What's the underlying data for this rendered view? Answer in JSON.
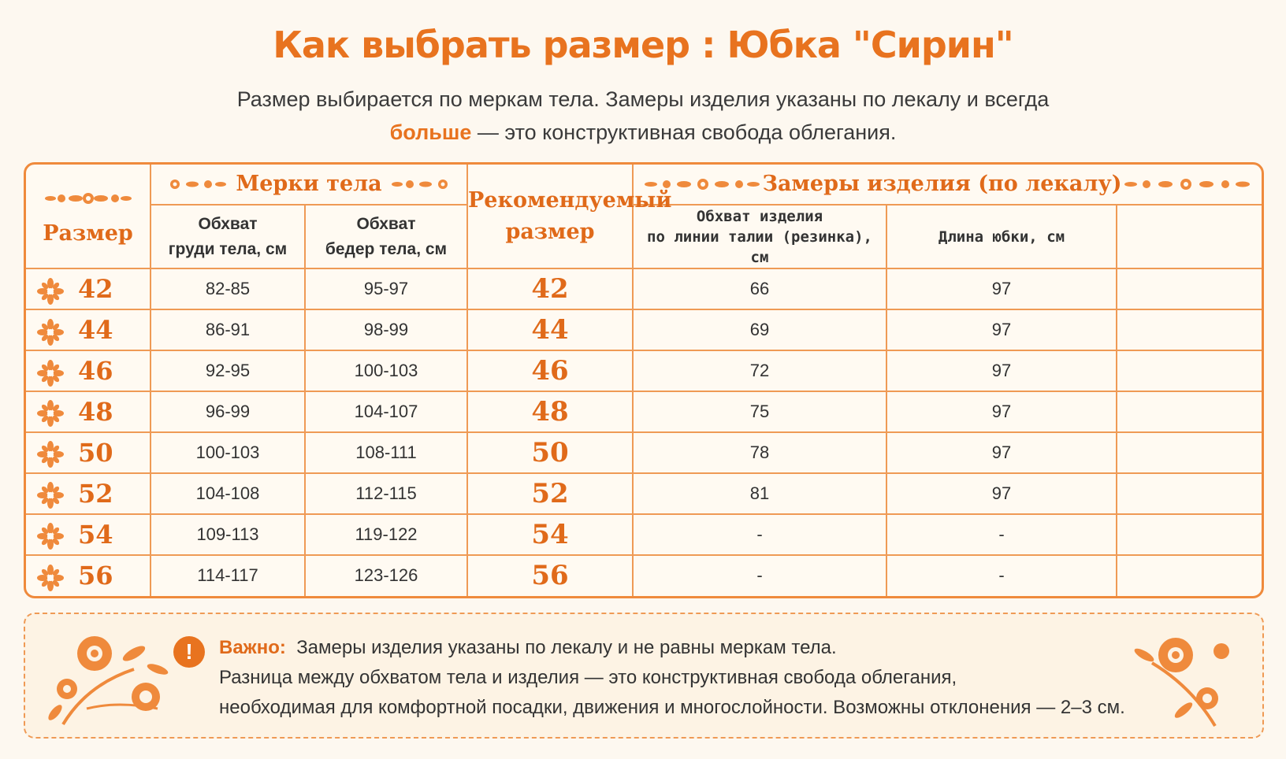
{
  "title": "Как выбрать размер :  Юбка \"Сирин\"",
  "subtitle": {
    "line1": "Размер выбирается по меркам тела. Замеры изделия указаны по лекалу и всегда",
    "bold": "больше",
    "line2_rest": " — это конструктивная свобода облегания."
  },
  "table": {
    "col_size": "Размер",
    "group_body": "Мерки тела",
    "col_chest": [
      "Обхват",
      "груди тела, см"
    ],
    "col_hips": [
      "Обхват",
      "бедер тела, см"
    ],
    "col_rec": [
      "Рекомендуемый",
      "размер"
    ],
    "group_product": "Замеры изделия (по лекалу)",
    "col_waist": [
      "Обхват изделия",
      "по линии талии (резинка), см"
    ],
    "col_length": "Длина юбки, см",
    "rows": [
      {
        "size": "42",
        "chest": "82-85",
        "hips": "95-97",
        "rec": "42",
        "waist": "66",
        "length": "97"
      },
      {
        "size": "44",
        "chest": "86-91",
        "hips": "98-99",
        "rec": "44",
        "waist": "69",
        "length": "97"
      },
      {
        "size": "46",
        "chest": "92-95",
        "hips": "100-103",
        "rec": "46",
        "waist": "72",
        "length": "97"
      },
      {
        "size": "48",
        "chest": "96-99",
        "hips": "104-107",
        "rec": "48",
        "waist": "75",
        "length": "97"
      },
      {
        "size": "50",
        "chest": "100-103",
        "hips": "108-111",
        "rec": "50",
        "waist": "78",
        "length": "97"
      },
      {
        "size": "52",
        "chest": "104-108",
        "hips": "112-115",
        "rec": "52",
        "waist": "81",
        "length": "97"
      },
      {
        "size": "54",
        "chest": "109-113",
        "hips": "119-122",
        "rec": "54",
        "waist": "-",
        "length": "-"
      },
      {
        "size": "56",
        "chest": "114-117",
        "hips": "123-126",
        "rec": "56",
        "waist": "-",
        "length": "-"
      }
    ]
  },
  "note": {
    "icon": "exclamation-icon",
    "label": "Важно:",
    "line1": "Замеры изделия указаны по лекалу и не равны меркам тела.",
    "line2": "Разница между обхватом тела и изделия — это конструктивная свобода облегания,",
    "line3": "необходимая для комфортной посадки, движения и многослойности. Возможны отклонения — 2–3 см."
  },
  "colors": {
    "accent": "#e8731f",
    "border": "#ef9a55",
    "background": "#fdf8f0"
  }
}
